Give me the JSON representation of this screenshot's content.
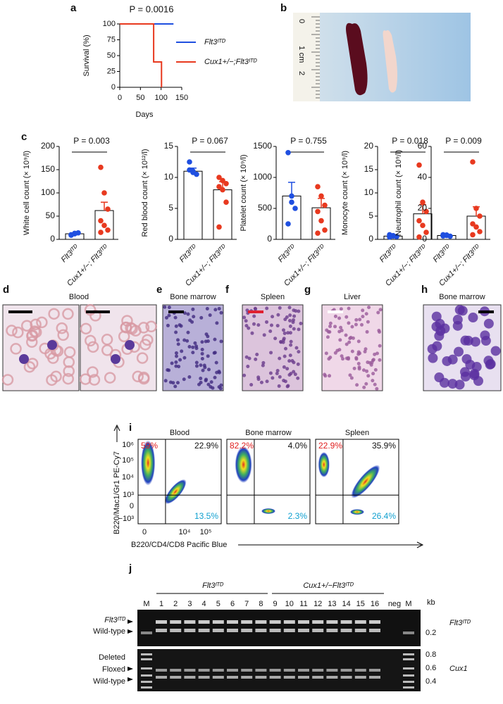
{
  "panel_labels": [
    "a",
    "b",
    "c",
    "d",
    "e",
    "f",
    "g",
    "h",
    "i",
    "j"
  ],
  "chart_data": [
    {
      "type": "line",
      "title": "P = 0.0016",
      "x_label": "Days",
      "y_label": "Survival (%)",
      "xlim": [
        0,
        150
      ],
      "xticks": [
        0,
        50,
        100,
        150
      ],
      "ylim": [
        0,
        100
      ],
      "yticks": [
        0,
        25,
        50,
        75,
        100
      ],
      "series": [
        {
          "name": "Flt3ᴵᵀᴰ",
          "color": "#1f4fe0",
          "x": [
            0,
            130
          ],
          "values": [
            100,
            100
          ]
        },
        {
          "name": "Cux1+/−;Flt3ᴵᵀᴰ",
          "color": "#e8391f",
          "x": [
            0,
            82,
            82,
            101,
            101
          ],
          "values": [
            100,
            100,
            40,
            40,
            0
          ]
        }
      ]
    },
    {
      "type": "bar",
      "title": "P = 0.003",
      "y_label": "White cell count (× 10⁹/l)",
      "categories": [
        "Flt3ᴵᵀᴰ",
        "Cux1+/−; Flt3ᴵᵀᴰ"
      ],
      "colors": [
        "#1f4fe0",
        "#e8391f"
      ],
      "values": [
        12,
        62
      ],
      "errors": [
        2,
        18
      ],
      "points": [
        [
          10,
          12,
          14,
          9,
          13
        ],
        [
          155,
          100,
          65,
          40,
          30,
          20,
          15
        ]
      ],
      "ylim": [
        0,
        200
      ],
      "yticks": [
        0,
        50,
        100,
        150,
        200
      ]
    },
    {
      "type": "bar",
      "title": "P = 0.067",
      "y_label": "Red blood count (× 10¹²/l)",
      "categories": [
        "Flt3ᴵᵀᴰ",
        "Cux1+/−; Flt3ᴵᵀᴰ"
      ],
      "colors": [
        "#1f4fe0",
        "#e8391f"
      ],
      "values": [
        11,
        8
      ],
      "errors": [
        0.5,
        1.3
      ],
      "points": [
        [
          12.5,
          11,
          10.5,
          11.2,
          10.8
        ],
        [
          10,
          9.5,
          9,
          8.5,
          8,
          6,
          2
        ]
      ],
      "ylim": [
        0,
        15
      ],
      "yticks": [
        0,
        5,
        10,
        15
      ]
    },
    {
      "type": "bar",
      "title": "P = 0.755",
      "y_label": "Platelet count (× 10⁹/l)",
      "categories": [
        "Flt3ᴵᵀᴰ",
        "Cux1+/−; Flt3ᴵᵀᴰ"
      ],
      "colors": [
        "#1f4fe0",
        "#e8391f"
      ],
      "values": [
        700,
        510
      ],
      "errors": [
        220,
        150
      ],
      "points": [
        [
          1400,
          700,
          500,
          250,
          600
        ],
        [
          850,
          700,
          550,
          450,
          300,
          150,
          100
        ]
      ],
      "ylim": [
        0,
        1500
      ],
      "yticks": [
        0,
        500,
        1000,
        1500
      ]
    },
    {
      "type": "bar",
      "title": "P = 0.018",
      "y_label": "Monocyte count (× 10⁹/l)",
      "categories": [
        "Flt3ᴵᵀᴰ",
        "Cux1+/−; Flt3ᴵᵀᴰ"
      ],
      "colors": [
        "#1f4fe0",
        "#e8391f"
      ],
      "values": [
        0.7,
        5.5
      ],
      "errors": [
        0.2,
        2
      ],
      "points": [
        [
          1,
          0.8,
          0.6,
          0.5,
          0.7
        ],
        [
          16,
          8,
          6,
          4,
          3,
          1.5,
          0.5
        ]
      ],
      "ylim": [
        0,
        20
      ],
      "yticks": [
        0,
        5,
        10,
        15,
        20
      ]
    },
    {
      "type": "bar",
      "title": "P = 0.009",
      "y_label": "Neutrophil count (× 10⁹/l)",
      "categories": [
        "Flt3ᴵᵀᴰ",
        "Cux1+/−; Flt3ᴵᵀᴰ"
      ],
      "colors": [
        "#1f4fe0",
        "#e8391f"
      ],
      "values": [
        2.5,
        15
      ],
      "errors": [
        0.5,
        6
      ],
      "points": [
        [
          3,
          2.5,
          2,
          2.2,
          2.8
        ],
        [
          50,
          20,
          15,
          10,
          8,
          5,
          3
        ]
      ],
      "ylim": [
        0,
        60
      ],
      "yticks": [
        0,
        20,
        40,
        60
      ]
    }
  ],
  "photo": {
    "ruler": [
      "0",
      "1",
      "cm",
      "2"
    ]
  },
  "histology": [
    "Blood",
    "Bone marrow",
    "Spleen",
    "Liver",
    "Bone marrow"
  ],
  "flow": {
    "y_label": "B220/Mac1/Gr1 PE-Cy7",
    "x_label": "B220/CD4/CD8 Pacific Blue",
    "yticks": [
      "10⁶",
      "10⁵",
      "10⁴",
      "10³",
      "0",
      "−10³"
    ],
    "xticks": [
      "0",
      "10⁴",
      "10⁵"
    ],
    "plots": [
      {
        "title": "Blood",
        "q_tl": "59%",
        "q_tr": "22.9%",
        "q_br": "13.5%"
      },
      {
        "title": "Bone marrow",
        "q_tl": "82.2%",
        "q_tr": "4.0%",
        "q_br": "2.3%"
      },
      {
        "title": "Spleen",
        "q_tl": "22.9%",
        "q_tr": "35.9%",
        "q_br": "26.4%"
      }
    ]
  },
  "gel": {
    "group1": "Flt3ᴵᵀᴰ",
    "group2": "Cux1+/−Flt3ᴵᵀᴰ",
    "lanes": [
      "M",
      "1",
      "2",
      "3",
      "4",
      "5",
      "6",
      "7",
      "8",
      "9",
      "10",
      "11",
      "12",
      "13",
      "14",
      "15",
      "16",
      "neg",
      "M"
    ],
    "unit": "kb",
    "top": {
      "left": [
        "Flt3ᴵᵀᴰ",
        "Wild-type"
      ],
      "sizes": [
        "0.2"
      ],
      "gene": "Flt3ᴵᵀᴰ"
    },
    "bottom": {
      "left": [
        "Deleted",
        "Floxed",
        "Wild-type"
      ],
      "sizes": [
        "0.8",
        "0.6",
        "0.4"
      ],
      "gene": "Cux1"
    }
  }
}
